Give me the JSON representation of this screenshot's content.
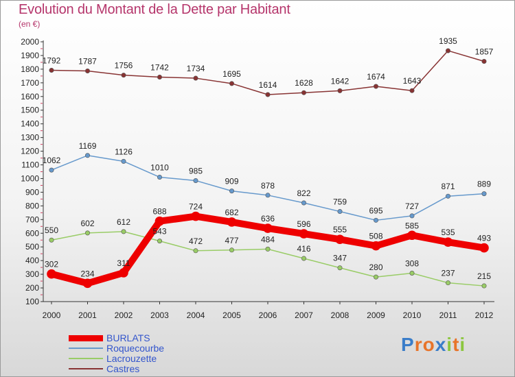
{
  "chart_data": {
    "type": "line",
    "title": "Evolution du Montant de la Dette par Habitant",
    "subtitle": "(en €)",
    "x": [
      "2000",
      "2001",
      "2002",
      "2003",
      "2004",
      "2005",
      "2006",
      "2007",
      "2008",
      "2009",
      "2010",
      "2011",
      "2012"
    ],
    "ylim": [
      100,
      2000
    ],
    "yticks": [
      100,
      200,
      300,
      400,
      500,
      600,
      700,
      800,
      900,
      1000,
      1100,
      1200,
      1300,
      1400,
      1500,
      1600,
      1700,
      1800,
      1900,
      2000
    ],
    "grid": false,
    "legend_position": "bottom-left",
    "series": [
      {
        "name": "BURLATS",
        "color": "#ee0000",
        "values": [
          302,
          234,
          311,
          688,
          724,
          682,
          636,
          596,
          555,
          508,
          585,
          535,
          493
        ]
      },
      {
        "name": "Roquecourbe",
        "color": "#6699cc",
        "values": [
          1062,
          1169,
          1126,
          1010,
          985,
          909,
          878,
          822,
          759,
          695,
          727,
          871,
          889
        ]
      },
      {
        "name": "Lacrouzette",
        "color": "#99cc66",
        "values": [
          550,
          602,
          612,
          543,
          472,
          477,
          484,
          416,
          347,
          280,
          308,
          237,
          215
        ]
      },
      {
        "name": "Castres",
        "color": "#883333",
        "values": [
          1792,
          1787,
          1756,
          1742,
          1734,
          1695,
          1614,
          1628,
          1642,
          1674,
          1643,
          1935,
          1857
        ]
      }
    ]
  },
  "logo": {
    "text": "Proxiti",
    "letter_colors": [
      "#3a7dc9",
      "#e8742a",
      "#e8742a",
      "#3a7dc9",
      "#8cc63f",
      "#e8742a",
      "#8cc63f"
    ]
  }
}
